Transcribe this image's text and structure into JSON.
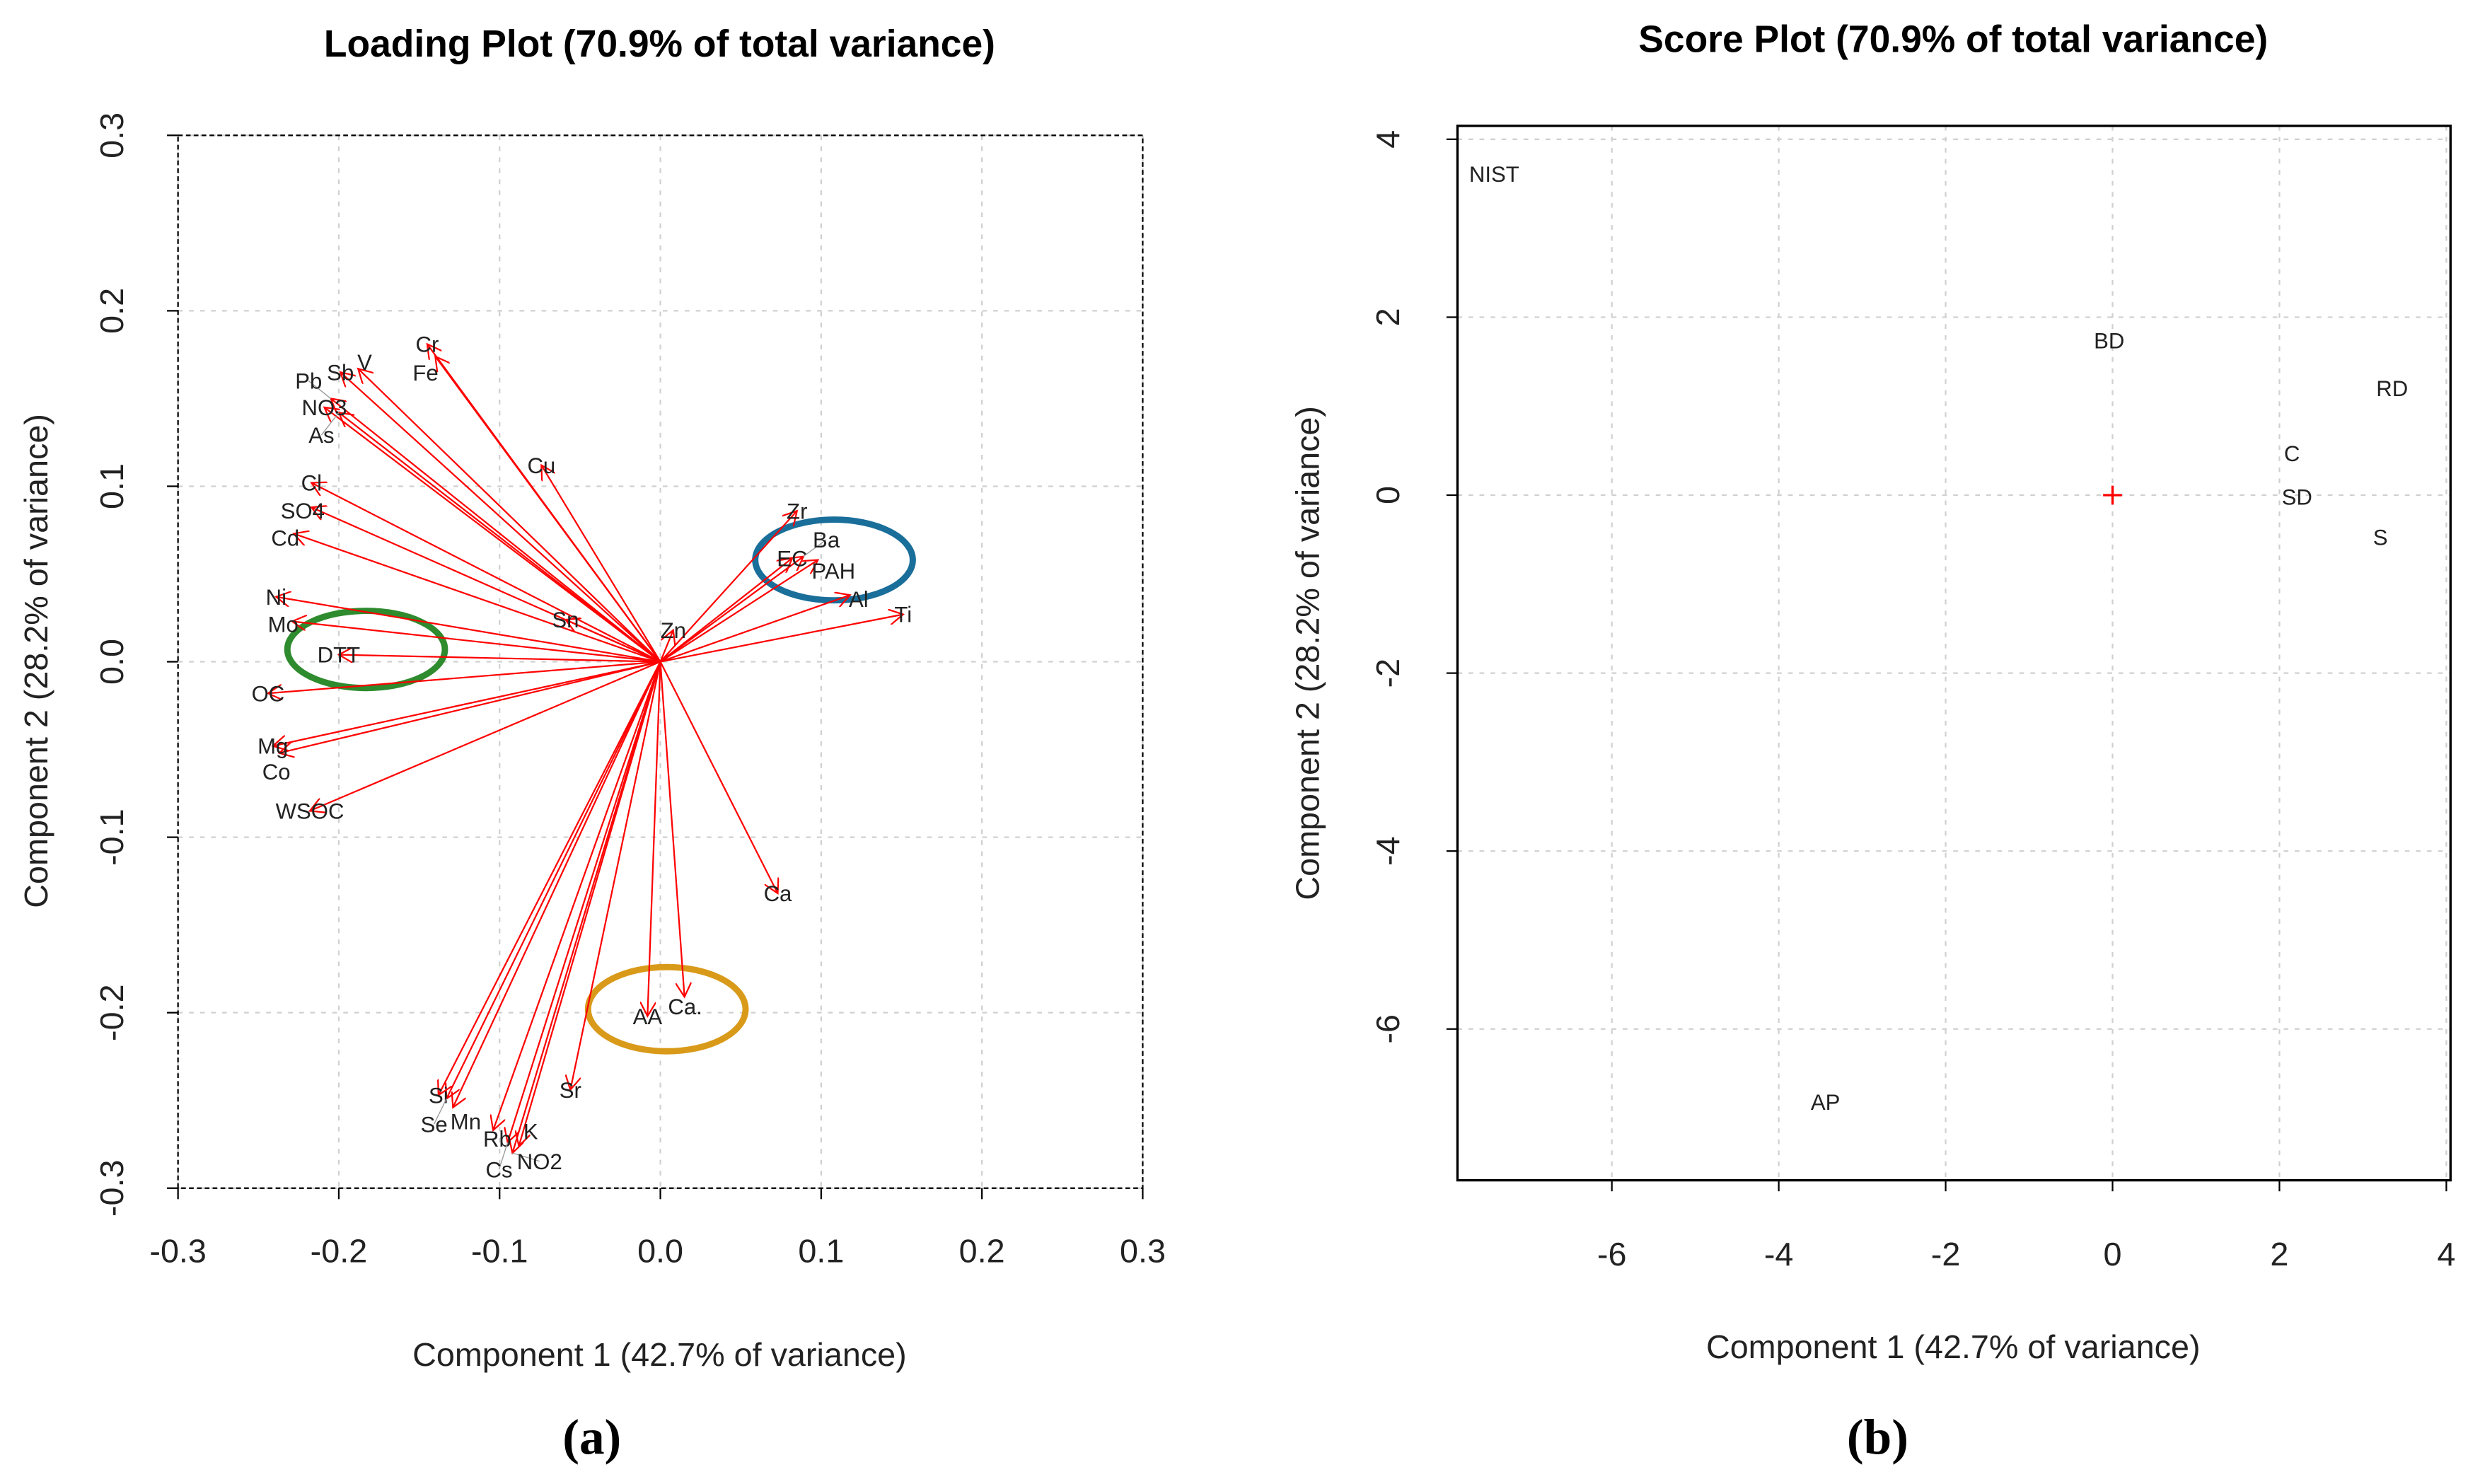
{
  "chart_data": [
    {
      "type": "scatter",
      "subtype": "biplot-loadings",
      "panel": "(a)",
      "title": "Loading Plot (70.9% of total variance)",
      "xlabel": "Component 1 (42.7% of variance)",
      "ylabel": "Component 2 (28.2% of variance)",
      "xlim": [
        -0.3,
        0.3
      ],
      "ylim": [
        -0.3,
        0.3
      ],
      "xticks": [
        "-0.3",
        "-0.2",
        "-0.1",
        "0.0",
        "0.1",
        "0.2",
        "0.3"
      ],
      "yticks": [
        "-0.3",
        "-0.2",
        "-0.1",
        "0.0",
        "0.1",
        "0.2",
        "0.3"
      ],
      "grid": true,
      "arrow_color": "#ff0000",
      "vectors": [
        {
          "label": "Cr",
          "x": -0.145,
          "y": 0.181
        },
        {
          "label": "Fe",
          "x": -0.14,
          "y": 0.174
        },
        {
          "label": "Sb",
          "x": -0.199,
          "y": 0.165
        },
        {
          "label": "V",
          "x": -0.188,
          "y": 0.167
        },
        {
          "label": "NO3",
          "x": -0.209,
          "y": 0.145
        },
        {
          "label": "Pb",
          "x": -0.205,
          "y": 0.15
        },
        {
          "label": "As",
          "x": -0.2,
          "y": 0.142
        },
        {
          "label": "Cu",
          "x": -0.074,
          "y": 0.112
        },
        {
          "label": "Cl",
          "x": -0.217,
          "y": 0.102
        },
        {
          "label": "SO4",
          "x": -0.217,
          "y": 0.088
        },
        {
          "label": "Cd",
          "x": -0.228,
          "y": 0.073
        },
        {
          "label": "Ni",
          "x": -0.239,
          "y": 0.037
        },
        {
          "label": "Mo",
          "x": -0.229,
          "y": 0.023
        },
        {
          "label": "DTT",
          "x": -0.2,
          "y": 0.004
        },
        {
          "label": "OC",
          "x": -0.244,
          "y": -0.018
        },
        {
          "label": "Mg",
          "x": -0.241,
          "y": -0.048
        },
        {
          "label": "Co",
          "x": -0.237,
          "y": -0.052
        },
        {
          "label": "WSOC",
          "x": -0.218,
          "y": -0.085
        },
        {
          "label": "Sn",
          "x": -0.059,
          "y": 0.024
        },
        {
          "label": "Zn",
          "x": 0.008,
          "y": 0.018
        },
        {
          "label": "Zr",
          "x": 0.085,
          "y": 0.086
        },
        {
          "label": "EC",
          "x": 0.082,
          "y": 0.059
        },
        {
          "label": "Ba",
          "x": 0.089,
          "y": 0.06
        },
        {
          "label": "PAH",
          "x": 0.098,
          "y": 0.058
        },
        {
          "label": "Al",
          "x": 0.118,
          "y": 0.038
        },
        {
          "label": "Ti",
          "x": 0.151,
          "y": 0.027
        },
        {
          "label": "Ca",
          "x": 0.073,
          "y": -0.132
        },
        {
          "label": "AA",
          "x": -0.008,
          "y": -0.202
        },
        {
          "label": "Ca.",
          "x": 0.015,
          "y": -0.191
        },
        {
          "label": "Sr",
          "x": -0.056,
          "y": -0.244
        },
        {
          "label": "Si",
          "x": -0.138,
          "y": -0.247
        },
        {
          "label": "Se",
          "x": -0.133,
          "y": -0.249
        },
        {
          "label": "Mn",
          "x": -0.129,
          "y": -0.254
        },
        {
          "label": "Rb",
          "x": -0.104,
          "y": -0.267
        },
        {
          "label": "Cs",
          "x": -0.095,
          "y": -0.274
        },
        {
          "label": "NO2",
          "x": -0.092,
          "y": -0.28
        },
        {
          "label": "K",
          "x": -0.088,
          "y": -0.276
        }
      ],
      "annotations": [
        {
          "shape": "ellipse",
          "color": "#2e8b2e",
          "cx": -0.183,
          "cy": 0.007,
          "rx": 0.049,
          "ry": 0.022
        },
        {
          "shape": "ellipse",
          "color": "#1a6e9a",
          "cx": 0.108,
          "cy": 0.058,
          "rx": 0.049,
          "ry": 0.023
        },
        {
          "shape": "ellipse",
          "color": "#d99a1a",
          "cx": 0.004,
          "cy": -0.198,
          "rx": 0.049,
          "ry": 0.024
        }
      ]
    },
    {
      "type": "scatter",
      "subtype": "biplot-scores",
      "panel": "(b)",
      "title": "Score Plot (70.9% of total variance)",
      "xlabel": "Component 1 (42.7% of variance)",
      "ylabel": "Component 2 (28.2% of variance)",
      "xlim": [
        -7.85,
        4.05
      ],
      "ylim": [
        -7.7,
        4.15
      ],
      "xticks": [
        "-6",
        "-4",
        "-2",
        "0",
        "2",
        "4"
      ],
      "yticks": [
        "-6",
        "-4",
        "-2",
        "0",
        "2",
        "4"
      ],
      "grid": true,
      "origin_marker_color": "#ff0000",
      "points": [
        {
          "label": "NIST",
          "x": -7.41,
          "y": 3.61
        },
        {
          "label": "BD",
          "x": -0.04,
          "y": 1.74
        },
        {
          "label": "RD",
          "x": 3.35,
          "y": 1.2
        },
        {
          "label": "C",
          "x": 2.15,
          "y": 0.47
        },
        {
          "label": "SD",
          "x": 2.21,
          "y": -0.02
        },
        {
          "label": "S",
          "x": 3.21,
          "y": -0.47
        },
        {
          "label": "AP",
          "x": -3.44,
          "y": -6.82
        }
      ]
    }
  ]
}
